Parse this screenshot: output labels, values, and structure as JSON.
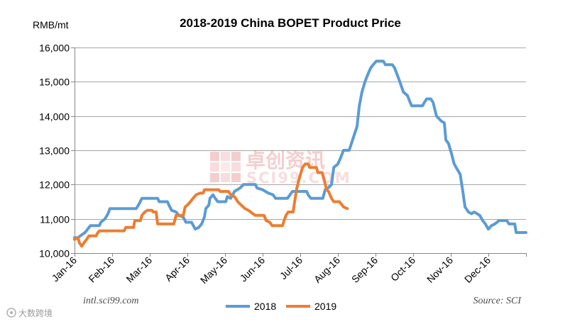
{
  "chart_data": {
    "type": "line",
    "title": "2018-2019 China BOPET Product Price",
    "ylabel": "RMB/mt",
    "ylim": [
      10000,
      16000
    ],
    "xlim": [
      0,
      12
    ],
    "yticks": [
      10000,
      11000,
      12000,
      13000,
      14000,
      15000,
      16000
    ],
    "ytick_labels": [
      "10,000",
      "11,000",
      "12,000",
      "13,000",
      "14,000",
      "15,000",
      "16,000"
    ],
    "xticks": [
      0,
      1,
      2,
      3,
      4,
      5,
      6,
      7,
      8,
      9,
      10,
      11
    ],
    "xtick_labels": [
      "Jan-16",
      "Feb-16",
      "Mar-16",
      "Apr-16",
      "May-16",
      "Jun-16",
      "Jul-16",
      "Aug-16",
      "Sep-16",
      "Oct-16",
      "Nov-16",
      "Dec-16"
    ],
    "grid": true,
    "legend": "bottom",
    "series": [
      {
        "name": "2018",
        "color": "#5B9BD5",
        "points": [
          [
            0.0,
            10450
          ],
          [
            0.09,
            10450
          ],
          [
            0.15,
            10500
          ],
          [
            0.28,
            10600
          ],
          [
            0.42,
            10800
          ],
          [
            0.66,
            10800
          ],
          [
            0.7,
            10900
          ],
          [
            0.81,
            11000
          ],
          [
            0.89,
            11150
          ],
          [
            0.94,
            11300
          ],
          [
            1.64,
            11300
          ],
          [
            1.7,
            11400
          ],
          [
            1.79,
            11600
          ],
          [
            2.21,
            11600
          ],
          [
            2.25,
            11500
          ],
          [
            2.47,
            11500
          ],
          [
            2.51,
            11400
          ],
          [
            2.58,
            11250
          ],
          [
            2.7,
            11200
          ],
          [
            2.77,
            11100
          ],
          [
            2.89,
            11050
          ],
          [
            2.96,
            10900
          ],
          [
            3.11,
            10900
          ],
          [
            3.21,
            10700
          ],
          [
            3.3,
            10750
          ],
          [
            3.38,
            10850
          ],
          [
            3.45,
            11050
          ],
          [
            3.49,
            11300
          ],
          [
            3.57,
            11400
          ],
          [
            3.6,
            11600
          ],
          [
            3.68,
            11700
          ],
          [
            3.74,
            11600
          ],
          [
            3.81,
            11500
          ],
          [
            4.02,
            11500
          ],
          [
            4.06,
            11650
          ],
          [
            4.15,
            11600
          ],
          [
            4.25,
            11800
          ],
          [
            4.4,
            11900
          ],
          [
            4.49,
            12000
          ],
          [
            4.81,
            12000
          ],
          [
            4.85,
            11900
          ],
          [
            5.0,
            11850
          ],
          [
            5.15,
            11750
          ],
          [
            5.28,
            11700
          ],
          [
            5.34,
            11600
          ],
          [
            5.66,
            11600
          ],
          [
            5.79,
            11800
          ],
          [
            6.17,
            11800
          ],
          [
            6.21,
            11700
          ],
          [
            6.28,
            11600
          ],
          [
            6.6,
            11600
          ],
          [
            6.66,
            11850
          ],
          [
            6.74,
            11900
          ],
          [
            6.83,
            12000
          ],
          [
            6.89,
            12500
          ],
          [
            7.0,
            12600
          ],
          [
            7.08,
            12800
          ],
          [
            7.15,
            13000
          ],
          [
            7.3,
            13000
          ],
          [
            7.36,
            13200
          ],
          [
            7.45,
            13500
          ],
          [
            7.51,
            13700
          ],
          [
            7.57,
            14300
          ],
          [
            7.64,
            14700
          ],
          [
            7.72,
            15000
          ],
          [
            7.79,
            15200
          ],
          [
            7.87,
            15400
          ],
          [
            7.94,
            15500
          ],
          [
            8.02,
            15600
          ],
          [
            8.21,
            15600
          ],
          [
            8.26,
            15500
          ],
          [
            8.45,
            15500
          ],
          [
            8.51,
            15400
          ],
          [
            8.58,
            15200
          ],
          [
            8.68,
            14900
          ],
          [
            8.74,
            14700
          ],
          [
            8.85,
            14600
          ],
          [
            8.92,
            14400
          ],
          [
            8.96,
            14300
          ],
          [
            9.25,
            14300
          ],
          [
            9.3,
            14400
          ],
          [
            9.36,
            14500
          ],
          [
            9.47,
            14500
          ],
          [
            9.53,
            14400
          ],
          [
            9.62,
            14000
          ],
          [
            9.75,
            13850
          ],
          [
            9.83,
            13800
          ],
          [
            9.87,
            13300
          ],
          [
            9.94,
            13200
          ],
          [
            10.02,
            12900
          ],
          [
            10.09,
            12600
          ],
          [
            10.17,
            12450
          ],
          [
            10.25,
            12300
          ],
          [
            10.32,
            11800
          ],
          [
            10.38,
            11350
          ],
          [
            10.47,
            11200
          ],
          [
            10.55,
            11150
          ],
          [
            10.62,
            11200
          ],
          [
            10.7,
            11150
          ],
          [
            10.77,
            11100
          ],
          [
            10.85,
            10950
          ],
          [
            10.92,
            10850
          ],
          [
            11.0,
            10700
          ],
          [
            11.08,
            10800
          ],
          [
            11.17,
            10850
          ],
          [
            11.23,
            10900
          ],
          [
            11.28,
            10950
          ],
          [
            11.49,
            10950
          ],
          [
            11.55,
            10850
          ],
          [
            11.7,
            10850
          ],
          [
            11.74,
            10600
          ],
          [
            12.0,
            10600
          ]
        ]
      },
      {
        "name": "2019",
        "color": "#ED7D31",
        "points": [
          [
            0.0,
            10400
          ],
          [
            0.09,
            10450
          ],
          [
            0.13,
            10300
          ],
          [
            0.19,
            10200
          ],
          [
            0.25,
            10300
          ],
          [
            0.32,
            10400
          ],
          [
            0.38,
            10500
          ],
          [
            0.57,
            10500
          ],
          [
            0.62,
            10600
          ],
          [
            0.66,
            10650
          ],
          [
            1.32,
            10650
          ],
          [
            1.36,
            10750
          ],
          [
            1.57,
            10750
          ],
          [
            1.6,
            10950
          ],
          [
            1.75,
            10950
          ],
          [
            1.79,
            11100
          ],
          [
            1.87,
            11200
          ],
          [
            1.94,
            11250
          ],
          [
            2.06,
            11250
          ],
          [
            2.09,
            11200
          ],
          [
            2.17,
            11200
          ],
          [
            2.21,
            10850
          ],
          [
            2.64,
            10850
          ],
          [
            2.7,
            11100
          ],
          [
            2.89,
            11100
          ],
          [
            2.94,
            11350
          ],
          [
            3.0,
            11400
          ],
          [
            3.08,
            11500
          ],
          [
            3.15,
            11600
          ],
          [
            3.23,
            11700
          ],
          [
            3.34,
            11750
          ],
          [
            3.42,
            11750
          ],
          [
            3.45,
            11850
          ],
          [
            3.83,
            11850
          ],
          [
            3.87,
            11800
          ],
          [
            4.09,
            11800
          ],
          [
            4.15,
            11700
          ],
          [
            4.25,
            11650
          ],
          [
            4.34,
            11500
          ],
          [
            4.43,
            11400
          ],
          [
            4.53,
            11300
          ],
          [
            4.62,
            11250
          ],
          [
            4.74,
            11150
          ],
          [
            4.81,
            11100
          ],
          [
            5.04,
            11100
          ],
          [
            5.09,
            10950
          ],
          [
            5.19,
            10900
          ],
          [
            5.25,
            10800
          ],
          [
            5.53,
            10800
          ],
          [
            5.57,
            10950
          ],
          [
            5.62,
            11100
          ],
          [
            5.68,
            11200
          ],
          [
            5.81,
            11200
          ],
          [
            5.85,
            11500
          ],
          [
            5.91,
            11900
          ],
          [
            5.98,
            12200
          ],
          [
            6.06,
            12500
          ],
          [
            6.13,
            12600
          ],
          [
            6.21,
            12600
          ],
          [
            6.25,
            12500
          ],
          [
            6.43,
            12500
          ],
          [
            6.47,
            12350
          ],
          [
            6.58,
            12350
          ],
          [
            6.62,
            12200
          ],
          [
            6.7,
            11850
          ],
          [
            6.75,
            11800
          ],
          [
            6.83,
            11600
          ],
          [
            6.89,
            11500
          ],
          [
            7.04,
            11500
          ],
          [
            7.08,
            11450
          ],
          [
            7.15,
            11350
          ],
          [
            7.25,
            11300
          ]
        ]
      }
    ]
  },
  "watermark": {
    "logo_text": "卓创资讯",
    "logo_domain": "SCI99.COM",
    "color": "#D9534F"
  },
  "footer": {
    "site": "intl.sci99.com",
    "source": "Source: SCI",
    "badge_text": "大数跨境"
  }
}
